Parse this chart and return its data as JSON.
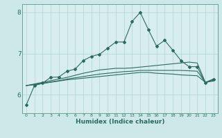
{
  "xlabel": "Humidex (Indice chaleur)",
  "bg_color": "#cce8e8",
  "plot_bg_color": "#d8eeee",
  "line_color": "#2a6b60",
  "grid_color": "#b0d4d4",
  "spine_color": "#5a9a8a",
  "xlim": [
    -0.5,
    23.5
  ],
  "ylim": [
    5.55,
    8.2
  ],
  "xticks": [
    0,
    1,
    2,
    3,
    4,
    5,
    6,
    7,
    8,
    9,
    10,
    11,
    12,
    13,
    14,
    15,
    16,
    17,
    18,
    19,
    20,
    21,
    22,
    23
  ],
  "yticks": [
    6,
    7,
    8
  ],
  "main_line": [
    5.75,
    6.22,
    6.28,
    6.42,
    6.43,
    6.57,
    6.62,
    6.83,
    6.93,
    6.98,
    7.13,
    7.28,
    7.28,
    7.78,
    8.0,
    7.58,
    7.18,
    7.32,
    7.08,
    6.83,
    6.68,
    6.68,
    6.28,
    6.38
  ],
  "trend_line1": [
    6.22,
    6.24,
    6.27,
    6.3,
    6.33,
    6.36,
    6.38,
    6.4,
    6.42,
    6.44,
    6.46,
    6.48,
    6.5,
    6.52,
    6.54,
    6.54,
    6.52,
    6.51,
    6.5,
    6.48,
    6.47,
    6.46,
    6.3,
    6.33
  ],
  "trend_line2": [
    6.22,
    6.25,
    6.28,
    6.31,
    6.34,
    6.38,
    6.41,
    6.44,
    6.47,
    6.5,
    6.52,
    6.54,
    6.56,
    6.57,
    6.59,
    6.59,
    6.59,
    6.59,
    6.59,
    6.59,
    6.58,
    6.57,
    6.3,
    6.35
  ],
  "trend_line3": [
    6.22,
    6.26,
    6.3,
    6.34,
    6.38,
    6.42,
    6.47,
    6.52,
    6.56,
    6.6,
    6.62,
    6.64,
    6.64,
    6.65,
    6.67,
    6.69,
    6.71,
    6.73,
    6.75,
    6.77,
    6.79,
    6.77,
    6.3,
    6.38
  ]
}
